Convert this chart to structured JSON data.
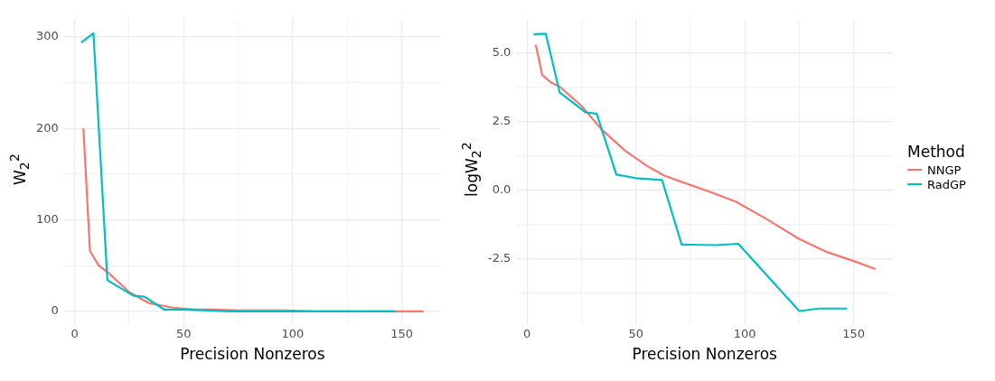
{
  "chart_data": [
    {
      "type": "line",
      "xlabel": "Precision Nonzeros",
      "ylabel": "W$_{2}$$^{2}$",
      "xlim": [
        -4.9,
        168
      ],
      "xticks": [
        0,
        {
          "value": 25,
          "label": null
        },
        50,
        {
          "value": 75,
          "label": null
        },
        100,
        {
          "value": 125,
          "label": null
        },
        150
      ],
      "ylim": [
        -15,
        319
      ],
      "yticks": [
        0,
        {
          "value": 50,
          "label": null
        },
        100,
        {
          "value": 150,
          "label": null
        },
        200,
        {
          "value": 250,
          "label": null
        },
        300
      ],
      "grid": true,
      "legend": false,
      "line_style": "solid",
      "series": [
        {
          "color": "#f8766d",
          "x": [
            4,
            7,
            11,
            15,
            25,
            34,
            45,
            55,
            63,
            75,
            84,
            96,
            110,
            125,
            138,
            150,
            160
          ],
          "values": [
            200,
            66,
            50,
            43,
            21,
            9,
            4,
            2,
            2,
            1,
            1,
            1,
            0,
            0,
            0,
            0,
            0
          ]
        },
        {
          "color": "#00bfc4",
          "x": [
            3,
            8.6,
            15,
            27,
            32,
            41,
            50,
            62,
            71,
            87,
            97,
            125,
            134,
            147
          ],
          "values": [
            294,
            304,
            34,
            17,
            16,
            2,
            2,
            1,
            0,
            0,
            0,
            0,
            0,
            0
          ]
        }
      ]
    },
    {
      "type": "line",
      "xlabel": "Precision Nonzeros",
      "ylabel": "logW$_{2}$$^{2}$",
      "legend_title": "Method",
      "xlim": [
        -4.9,
        168
      ],
      "xticks": [
        0,
        {
          "value": 25,
          "label": null
        },
        50,
        {
          "value": 75,
          "label": null
        },
        100,
        {
          "value": 125,
          "label": null
        },
        150
      ],
      "ylim": [
        -4.92,
        6.2
      ],
      "yticks": [
        {
          "value": -3.75,
          "label": null
        },
        {
          "value": -2.5,
          "label": "-2.5"
        },
        {
          "value": -1.25,
          "label": null
        },
        {
          "value": 0,
          "label": "0.0"
        },
        {
          "value": 1.25,
          "label": null
        },
        2.5,
        {
          "value": 3.75,
          "label": null
        },
        {
          "value": 5,
          "label": "5.0"
        }
      ],
      "grid": true,
      "legend": "right",
      "line_style": "solid",
      "series": [
        {
          "name": "NNGP",
          "color": "#f8766d",
          "x": [
            4,
            7,
            11,
            15,
            25,
            34,
            45,
            55,
            63,
            75,
            84,
            96,
            110,
            125,
            138,
            150,
            160
          ],
          "values": [
            5.29,
            4.18,
            3.91,
            3.76,
            3.06,
            2.22,
            1.43,
            0.88,
            0.52,
            0.18,
            -0.07,
            -0.43,
            -1.06,
            -1.79,
            -2.27,
            -2.59,
            -2.88
          ]
        },
        {
          "name": "RadGP",
          "color": "#00bfc4",
          "x": [
            3,
            8.6,
            15,
            27,
            32,
            41,
            50,
            62,
            71,
            87,
            97,
            125,
            134,
            147
          ],
          "values": [
            5.67,
            5.69,
            3.55,
            2.82,
            2.78,
            0.56,
            0.43,
            0.36,
            -1.99,
            -2.01,
            -1.96,
            -4.41,
            -4.32,
            -4.32
          ]
        }
      ]
    }
  ]
}
